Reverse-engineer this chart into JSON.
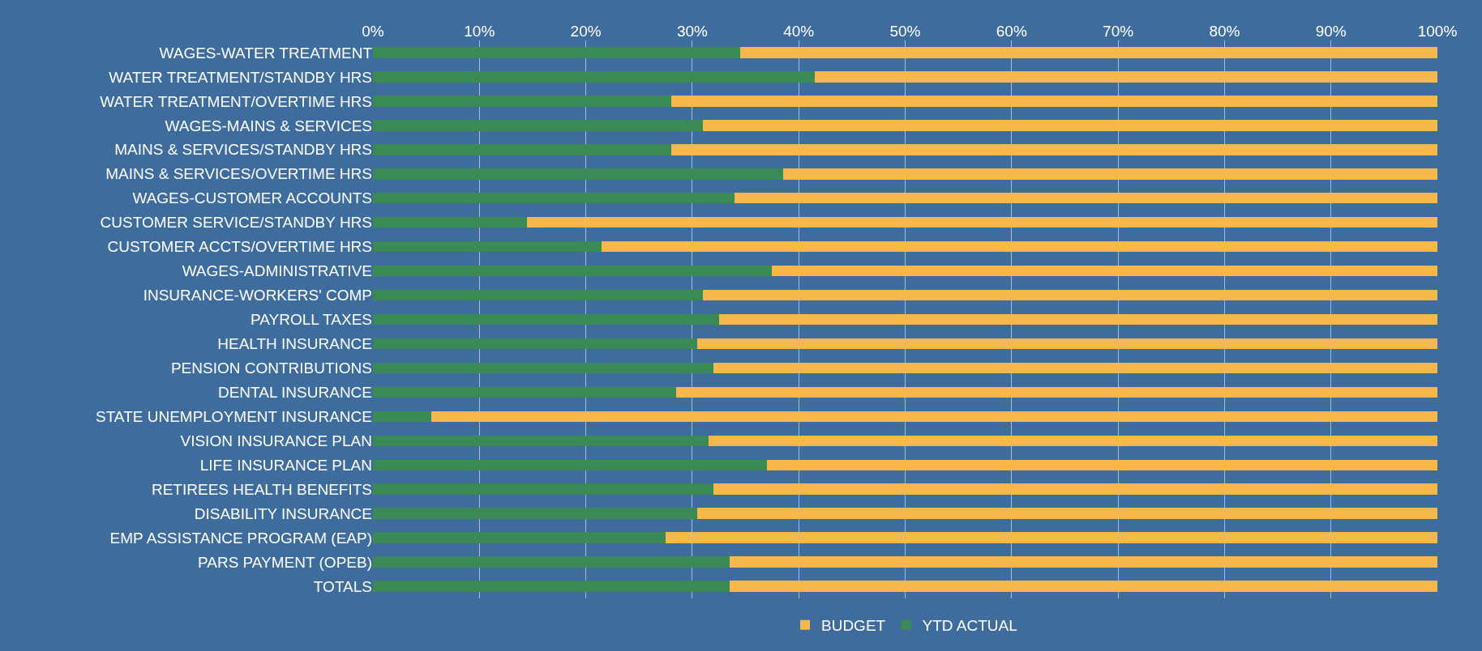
{
  "chart_data": {
    "type": "bar",
    "orientation": "horizontal",
    "stacked": true,
    "categories": [
      "WAGES-WATER TREATMENT",
      "WATER TREATMENT/STANDBY HRS",
      "WATER TREATMENT/OVERTIME HRS",
      "WAGES-MAINS & SERVICES",
      "MAINS & SERVICES/STANDBY HRS",
      "MAINS & SERVICES/OVERTIME HRS",
      "WAGES-CUSTOMER ACCOUNTS",
      "CUSTOMER SERVICE/STANDBY HRS",
      "CUSTOMER ACCTS/OVERTIME HRS",
      "WAGES-ADMINISTRATIVE",
      "INSURANCE-WORKERS' COMP",
      "PAYROLL TAXES",
      "HEALTH INSURANCE",
      "PENSION CONTRIBUTIONS",
      "DENTAL INSURANCE",
      "STATE UNEMPLOYMENT INSURANCE",
      "VISION INSURANCE PLAN",
      "LIFE INSURANCE PLAN",
      "RETIREES HEALTH BENEFITS",
      "DISABILITY INSURANCE",
      "EMP ASSISTANCE PROGRAM (EAP)",
      "PARS PAYMENT (OPEB)",
      "TOTALS"
    ],
    "series": [
      {
        "name": "YTD ACTUAL",
        "color": "#3b8a55",
        "values": [
          34.5,
          41.5,
          28,
          31,
          28,
          38.5,
          34,
          14.5,
          21.5,
          37.5,
          31,
          32.5,
          30.5,
          32,
          28.5,
          5.5,
          31.5,
          37,
          32,
          30.5,
          27.5,
          33.5,
          33.5
        ]
      },
      {
        "name": "BUDGET",
        "color": "#f7b84b",
        "values": [
          65.5,
          58.5,
          72,
          69,
          72,
          61.5,
          66,
          85.5,
          78.5,
          62.5,
          69,
          67.5,
          69.5,
          68,
          71.5,
          94.5,
          68.5,
          63,
          68,
          69.5,
          72.5,
          66.5,
          66.5
        ]
      }
    ],
    "xlim": [
      0,
      100
    ],
    "xticks": [
      {
        "value": 0,
        "label": "0%"
      },
      {
        "value": 10,
        "label": "10%"
      },
      {
        "value": 20,
        "label": "20%"
      },
      {
        "value": 30,
        "label": "30%"
      },
      {
        "value": 40,
        "label": "40%"
      },
      {
        "value": 50,
        "label": "50%"
      },
      {
        "value": 60,
        "label": "60%"
      },
      {
        "value": 70,
        "label": "70%"
      },
      {
        "value": 80,
        "label": "80%"
      },
      {
        "value": 90,
        "label": "90%"
      },
      {
        "value": 100,
        "label": "100%"
      }
    ],
    "grid": "x",
    "legend": "bottom"
  }
}
